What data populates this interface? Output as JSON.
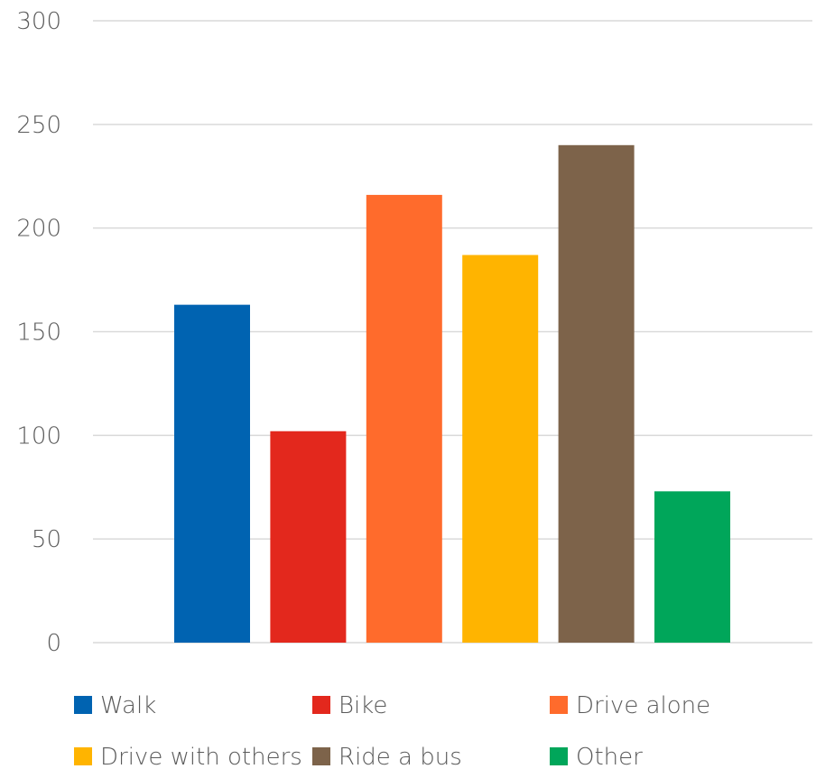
{
  "chart_data": {
    "type": "bar",
    "title": "",
    "xlabel": "",
    "ylabel": "",
    "ylim": [
      0,
      300
    ],
    "yticks": [
      0,
      50,
      100,
      150,
      200,
      250,
      300
    ],
    "grid": true,
    "legend_position": "bottom",
    "series": [
      {
        "name": "Walk",
        "value": 163,
        "color": "#0063b1"
      },
      {
        "name": "Bike",
        "value": 102,
        "color": "#e3281d"
      },
      {
        "name": "Drive alone",
        "value": 216,
        "color": "#ff6b2c"
      },
      {
        "name": "Drive with others",
        "value": 187,
        "color": "#ffb400"
      },
      {
        "name": "Ride a bus",
        "value": 240,
        "color": "#7d634a"
      },
      {
        "name": "Other",
        "value": 73,
        "color": "#00a65a"
      }
    ]
  }
}
